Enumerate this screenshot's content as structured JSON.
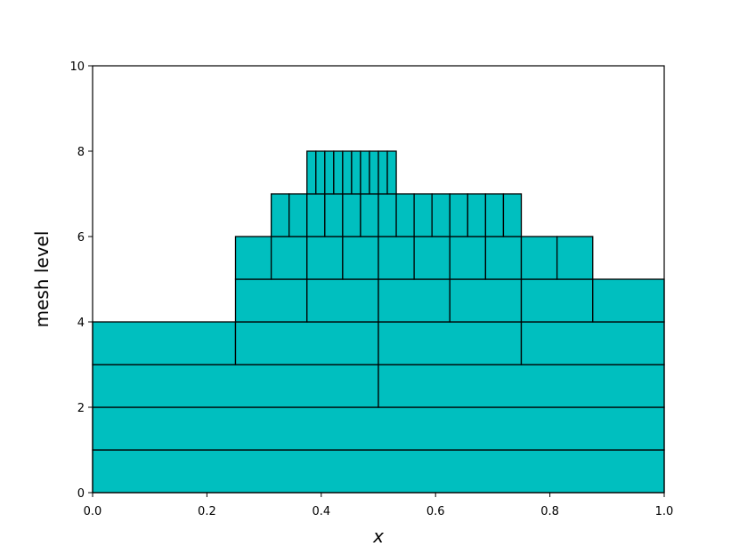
{
  "chart_data": {
    "type": "mesh",
    "x_label": "x",
    "y_label": "mesh level",
    "color": "#00bfbf",
    "edge_color": "#000000",
    "xlim": [
      0,
      1
    ],
    "ylim": [
      0,
      10
    ],
    "xticks": [
      {
        "value": 0,
        "label": "0.0"
      },
      0.2,
      0.4,
      0.6,
      0.8,
      {
        "value": 1,
        "label": "1.0"
      }
    ],
    "yticks": [
      0,
      2,
      4,
      6,
      8,
      10
    ],
    "levels": [
      {
        "level": 0,
        "edges": [
          0,
          1
        ]
      },
      {
        "level": 1,
        "edges": [
          0,
          1
        ]
      },
      {
        "level": 2,
        "edges": [
          0,
          0.5,
          1
        ]
      },
      {
        "level": 3,
        "edges": [
          0,
          0.25,
          0.5,
          0.75,
          1
        ]
      },
      {
        "level": 4,
        "edges": [
          0.25,
          0.375,
          0.5,
          0.625,
          0.75,
          0.875,
          1
        ]
      },
      {
        "level": 5,
        "edges": [
          0.25,
          0.3125,
          0.375,
          0.4375,
          0.5,
          0.5625,
          0.625,
          0.6875,
          0.75,
          0.8125,
          0.875
        ]
      },
      {
        "level": 6,
        "edges": [
          0.3125,
          0.34375,
          0.375,
          0.40625,
          0.4375,
          0.46875,
          0.5,
          0.53125,
          0.5625,
          0.59375,
          0.625,
          0.65625,
          0.6875,
          0.71875,
          0.75
        ]
      },
      {
        "level": 7,
        "edges": [
          0.375,
          0.390625,
          0.40625,
          0.421875,
          0.4375,
          0.453125,
          0.46875,
          0.484375,
          0.5,
          0.515625,
          0.53125
        ]
      }
    ]
  }
}
